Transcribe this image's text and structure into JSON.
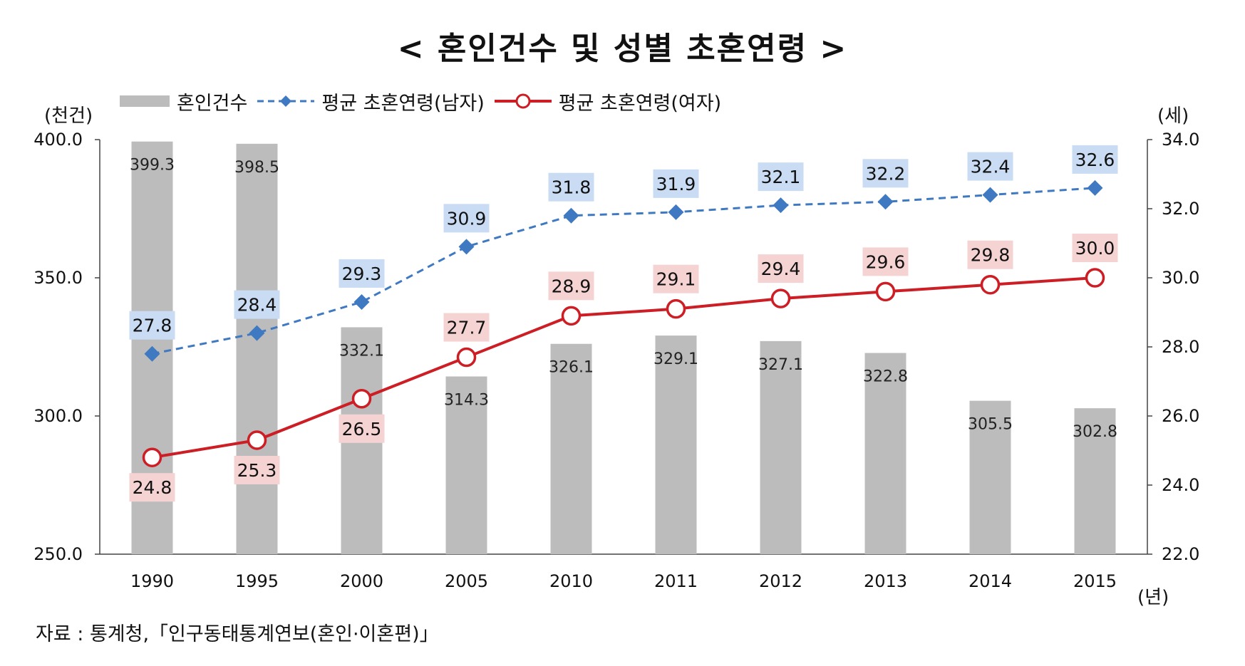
{
  "title": "< 혼인건수 및 성별 초혼연령 >",
  "units": {
    "left": "(천건)",
    "right": "(세)",
    "x": "(년)"
  },
  "source": "자료 : 통계청,「인구동태통계연보(혼인·이혼편)」",
  "colors": {
    "bar": "#bcbcbc",
    "male": "#3f79c2",
    "female": "#cc1e24",
    "male_label_bg": "#c9dcf3",
    "female_label_bg": "#f5d3d3"
  },
  "chart_data": {
    "type": "bar+line",
    "categories": [
      "1990",
      "1995",
      "2000",
      "2005",
      "2010",
      "2011",
      "2012",
      "2013",
      "2014",
      "2015"
    ],
    "series": [
      {
        "name": "혼인건수",
        "type": "bar",
        "axis": "left",
        "values": [
          399.3,
          398.5,
          332.1,
          314.3,
          326.1,
          329.1,
          327.1,
          322.8,
          305.5,
          302.8
        ]
      },
      {
        "name": "평균 초혼연령(남자)",
        "type": "line",
        "style": "dashed",
        "marker": "diamond",
        "axis": "right",
        "values": [
          27.8,
          28.4,
          29.3,
          30.9,
          31.8,
          31.9,
          32.1,
          32.2,
          32.4,
          32.6
        ]
      },
      {
        "name": "평균 초혼연령(여자)",
        "type": "line",
        "style": "solid",
        "marker": "circle",
        "axis": "right",
        "values": [
          24.8,
          25.3,
          26.5,
          27.7,
          28.9,
          29.1,
          29.4,
          29.6,
          29.8,
          30.0
        ]
      }
    ],
    "y_left": {
      "min": 250,
      "max": 400,
      "ticks": [
        "250.0",
        "300.0",
        "350.0",
        "400.0"
      ],
      "tick_values": [
        250,
        300,
        350,
        400
      ]
    },
    "y_right": {
      "min": 22,
      "max": 34,
      "ticks": [
        "22.0",
        "24.0",
        "26.0",
        "28.0",
        "30.0",
        "32.0",
        "34.0"
      ],
      "tick_values": [
        22,
        24,
        26,
        28,
        30,
        32,
        34
      ]
    },
    "legend_position": "top-left"
  }
}
